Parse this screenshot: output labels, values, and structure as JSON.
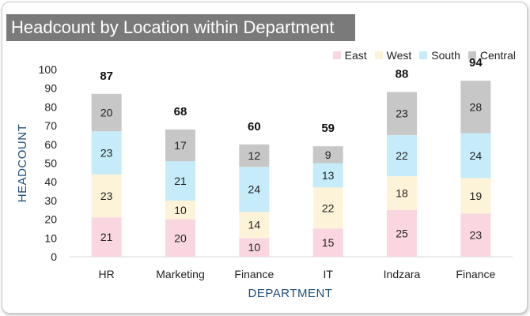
{
  "title": "Headcount by Location within Department",
  "colors": {
    "East": "#fad7e0",
    "West": "#fdf3d8",
    "South": "#c6ebf9",
    "Central": "#c7c7c7",
    "axis_title": "#1f4e79",
    "title_bg": "#7a7a7a"
  },
  "chart_data": {
    "type": "bar",
    "stacked": true,
    "title": "Headcount by Location within Department",
    "xlabel": "DEPARTMENT",
    "ylabel": "HEADCOUNT",
    "ylim": [
      0,
      100
    ],
    "yticks": [
      0,
      10,
      20,
      30,
      40,
      50,
      60,
      70,
      80,
      90,
      100
    ],
    "legend_position": "top-right",
    "categories": [
      "HR",
      "Marketing",
      "Finance",
      "IT",
      "Indzara",
      "Finance"
    ],
    "series": [
      {
        "name": "East",
        "values": [
          21,
          20,
          10,
          15,
          25,
          23
        ]
      },
      {
        "name": "West",
        "values": [
          23,
          10,
          14,
          22,
          18,
          19
        ]
      },
      {
        "name": "South",
        "values": [
          23,
          21,
          24,
          13,
          22,
          24
        ]
      },
      {
        "name": "Central",
        "values": [
          20,
          17,
          12,
          9,
          23,
          28
        ]
      }
    ],
    "totals": [
      87,
      68,
      60,
      59,
      88,
      94
    ]
  }
}
